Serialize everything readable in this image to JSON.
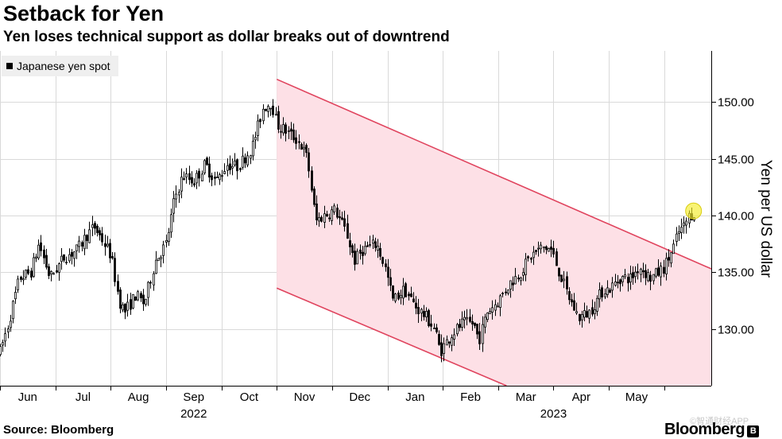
{
  "header": {
    "title": "Setback for Yen",
    "subtitle": "Yen loses technical support as dollar breaks out of downtrend"
  },
  "footer": {
    "source": "Source: Bloomberg",
    "brand": "Bloomberg",
    "brand_mark": "B",
    "watermark": "©智通财经APP"
  },
  "colors": {
    "channel_fill": "#fde0e6",
    "channel_line": "#e0445e",
    "candle": "#000000",
    "grid": "#d9d9d9",
    "highlight": "#f4ec2a"
  },
  "chart_data": {
    "type": "candlestick",
    "title": "Setback for Yen",
    "subtitle": "Yen loses technical support as dollar breaks out of downtrend",
    "legend": [
      "Japanese yen spot"
    ],
    "xlabel": "",
    "ylabel": "Yen per US dollar",
    "ylim": [
      125.0,
      154.5
    ],
    "y_ticks": [
      130,
      135,
      140,
      145,
      150
    ],
    "y_tick_labels": [
      "130.00",
      "135.00",
      "140.00",
      "145.00",
      "150.00"
    ],
    "x_range": [
      0,
      12.85
    ],
    "month_labels": [
      "Jun",
      "Jul",
      "Aug",
      "Sep",
      "Oct",
      "Nov",
      "Dec",
      "Jan",
      "Feb",
      "Mar",
      "Apr",
      "May"
    ],
    "year_labels": [
      {
        "label": "2022",
        "at": 3.5
      },
      {
        "label": "2023",
        "at": 10
      }
    ],
    "anchors": [
      [
        0.0,
        128.0
      ],
      [
        0.15,
        130.5
      ],
      [
        0.35,
        134.5
      ],
      [
        0.55,
        135.0
      ],
      [
        0.7,
        137.5
      ],
      [
        0.9,
        134.5
      ],
      [
        1.15,
        136.3
      ],
      [
        1.4,
        137.0
      ],
      [
        1.55,
        138.2
      ],
      [
        1.7,
        139.0
      ],
      [
        1.85,
        137.8
      ],
      [
        2.0,
        136.5
      ],
      [
        2.15,
        132.5
      ],
      [
        2.25,
        131.5
      ],
      [
        2.45,
        133.0
      ],
      [
        2.6,
        132.2
      ],
      [
        2.8,
        136.0
      ],
      [
        3.0,
        137.5
      ],
      [
        3.15,
        141.5
      ],
      [
        3.3,
        143.5
      ],
      [
        3.5,
        143.0
      ],
      [
        3.7,
        144.5
      ],
      [
        3.9,
        143.0
      ],
      [
        4.1,
        144.5
      ],
      [
        4.3,
        144.3
      ],
      [
        4.55,
        146.0
      ],
      [
        4.75,
        149.5
      ],
      [
        4.9,
        150.0
      ],
      [
        5.0,
        148.0
      ],
      [
        5.15,
        147.5
      ],
      [
        5.4,
        146.5
      ],
      [
        5.55,
        145.0
      ],
      [
        5.7,
        139.5
      ],
      [
        5.85,
        140.0
      ],
      [
        6.05,
        140.5
      ],
      [
        6.25,
        138.5
      ],
      [
        6.4,
        136.0
      ],
      [
        6.55,
        137.0
      ],
      [
        6.8,
        137.5
      ],
      [
        6.95,
        135.5
      ],
      [
        7.1,
        132.5
      ],
      [
        7.3,
        133.5
      ],
      [
        7.5,
        132.0
      ],
      [
        7.7,
        131.0
      ],
      [
        7.85,
        130.0
      ],
      [
        7.95,
        128.0
      ],
      [
        8.15,
        129.5
      ],
      [
        8.35,
        130.5
      ],
      [
        8.55,
        130.5
      ],
      [
        8.65,
        129.0
      ],
      [
        8.8,
        131.5
      ],
      [
        9.0,
        132.5
      ],
      [
        9.2,
        134.0
      ],
      [
        9.4,
        135.0
      ],
      [
        9.6,
        136.5
      ],
      [
        9.8,
        137.2
      ],
      [
        9.95,
        137.0
      ],
      [
        10.1,
        135.0
      ],
      [
        10.25,
        133.0
      ],
      [
        10.45,
        131.0
      ],
      [
        10.65,
        131.5
      ],
      [
        10.9,
        133.5
      ],
      [
        11.0,
        133.5
      ],
      [
        11.2,
        134.5
      ],
      [
        11.4,
        134.5
      ],
      [
        11.55,
        135.5
      ],
      [
        11.75,
        134.5
      ],
      [
        11.9,
        135.0
      ],
      [
        12.0,
        135.5
      ],
      [
        12.15,
        137.0
      ],
      [
        12.25,
        138.5
      ],
      [
        12.35,
        139.0
      ],
      [
        12.45,
        140.0
      ],
      [
        12.55,
        140.3
      ]
    ],
    "channel": {
      "upper_line": [
        [
          5.0,
          152.0
        ],
        [
          12.85,
          135.3
        ]
      ],
      "lower_line": [
        [
          5.0,
          133.6
        ],
        [
          9.15,
          125.0
        ]
      ]
    },
    "highlight_point": {
      "x": 12.53,
      "y": 140.4
    }
  }
}
